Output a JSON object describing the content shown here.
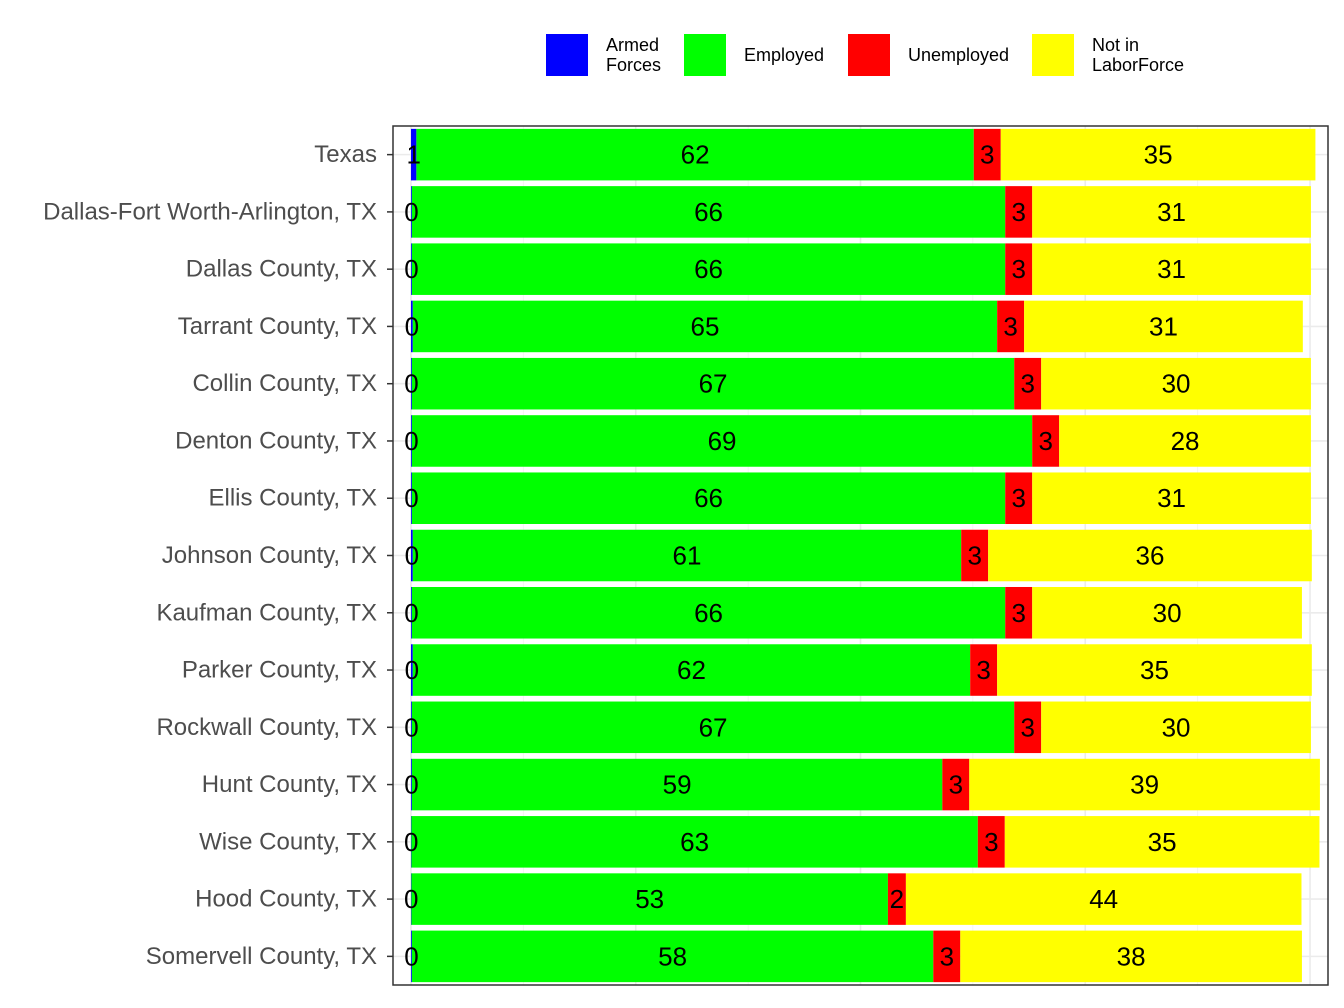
{
  "chart_data": {
    "type": "bar",
    "orientation": "horizontal",
    "stacked": true,
    "categories": [
      "Texas",
      "Dallas-Fort Worth-Arlington, TX",
      "Dallas County, TX",
      "Tarrant County, TX",
      "Collin County, TX",
      "Denton County, TX",
      "Ellis County, TX",
      "Johnson County, TX",
      "Kaufman County, TX",
      "Parker County, TX",
      "Rockwall County, TX",
      "Hunt County, TX",
      "Wise County, TX",
      "Hood County, TX",
      "Somervell County, TX"
    ],
    "series": [
      {
        "name": "Armed Forces",
        "legend_lines": [
          "Armed",
          "Forces"
        ],
        "color": "#0000ff",
        "values": [
          0.6,
          0.1,
          0.1,
          0.2,
          0.1,
          0.1,
          0.1,
          0.2,
          0.1,
          0.2,
          0.1,
          0.1,
          0.05,
          0.05,
          0.1
        ],
        "labels": [
          "1",
          "0",
          "0",
          "0",
          "0",
          "0",
          "0",
          "0",
          "0",
          "0",
          "0",
          "0",
          "0",
          "0",
          "0"
        ]
      },
      {
        "name": "Employed",
        "legend_lines": [
          "Employed"
        ],
        "color": "#00ff00",
        "values": [
          62,
          66,
          66,
          65,
          67,
          69,
          66,
          61,
          66,
          62,
          67,
          59,
          63,
          53,
          58
        ],
        "labels": [
          "62",
          "66",
          "66",
          "65",
          "67",
          "69",
          "66",
          "61",
          "66",
          "62",
          "67",
          "59",
          "63",
          "53",
          "58"
        ]
      },
      {
        "name": "Unemployed",
        "legend_lines": [
          "Unemployed"
        ],
        "color": "#ff0000",
        "values": [
          3,
          3,
          3,
          3,
          3,
          3,
          3,
          3,
          3,
          3,
          3,
          3,
          3,
          2,
          3
        ],
        "labels": [
          "3",
          "3",
          "3",
          "3",
          "3",
          "3",
          "3",
          "3",
          "3",
          "3",
          "3",
          "3",
          "3",
          "2",
          "3"
        ]
      },
      {
        "name": "Not in LaborForce",
        "legend_lines": [
          "Not in",
          "LaborForce"
        ],
        "color": "#ffff00",
        "values": [
          35,
          31,
          31,
          31,
          30,
          28,
          31,
          36,
          30,
          35,
          30,
          39,
          35,
          44,
          38
        ],
        "labels": [
          "35",
          "31",
          "31",
          "31",
          "30",
          "28",
          "31",
          "36",
          "30",
          "35",
          "30",
          "39",
          "35",
          "44",
          "38"
        ]
      }
    ],
    "xlim": [
      -2,
      102
    ],
    "grid": true,
    "legend_position": "top",
    "title": "",
    "xlabel": "",
    "ylabel": ""
  }
}
